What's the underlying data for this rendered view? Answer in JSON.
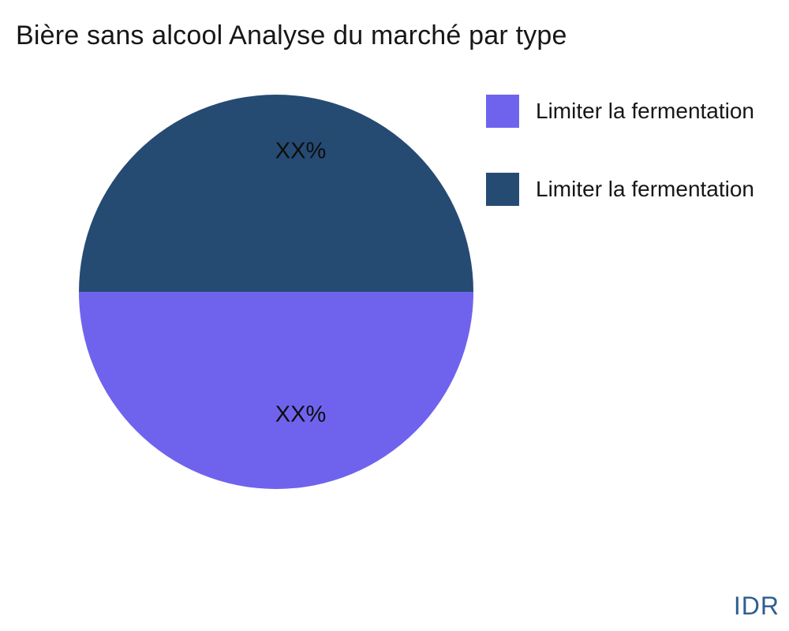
{
  "title": "Bière sans alcool Analyse du marché par type",
  "pie": {
    "top": {
      "label": "XX%",
      "color": "#254B73"
    },
    "bottom": {
      "label": "XX%",
      "color": "#6F63EE"
    }
  },
  "legend": {
    "items": [
      {
        "label": "Limiter la fermentation",
        "color": "#6F63EE"
      },
      {
        "label": "Limiter la fermentation",
        "color": "#254B73"
      }
    ]
  },
  "watermark": {
    "text": "IDR",
    "color": "#2E5E8E"
  },
  "chart_data": {
    "type": "pie",
    "title": "Bière sans alcool Analyse du marché par type",
    "series": [
      {
        "name": "Limiter la fermentation",
        "value": 50,
        "value_label": "XX%",
        "color": "#6F63EE",
        "position": "bottom-half"
      },
      {
        "name": "Limiter la fermentation",
        "value": 50,
        "value_label": "XX%",
        "color": "#254B73",
        "position": "top-half"
      }
    ],
    "annotations": [
      "XX%",
      "XX%"
    ],
    "legend_position": "upper-right",
    "watermark": "IDR",
    "background": "#ffffff"
  }
}
